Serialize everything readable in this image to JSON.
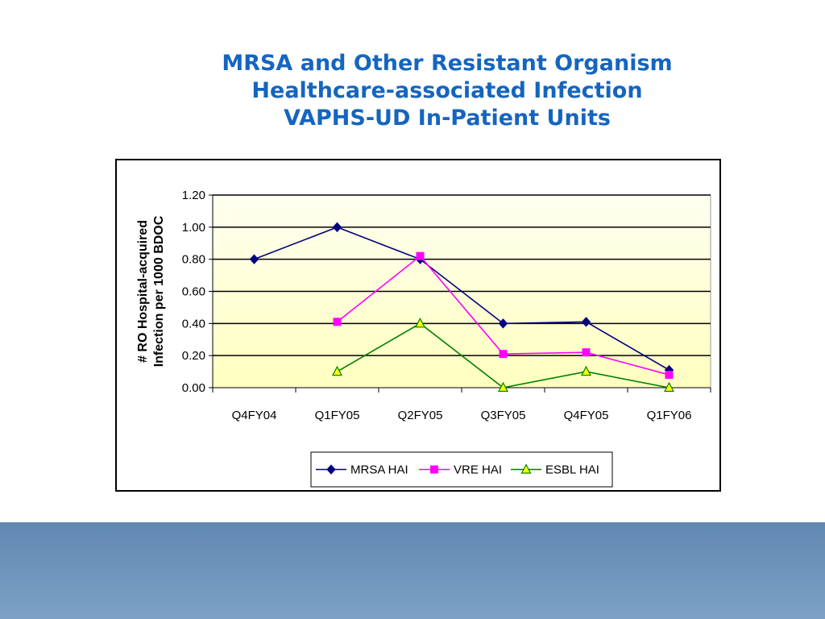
{
  "slide": {
    "title_lines": [
      "MRSA and Other Resistant Organism",
      "Healthcare-associated Infection",
      "VAPHS-UD In-Patient Units"
    ]
  },
  "colors": {
    "title": "#1565c0",
    "plot_bg_top": "#fffff0",
    "plot_bg_bottom": "#ffffc0",
    "footer": "#6f94bb"
  },
  "chart_data": {
    "type": "line",
    "categories": [
      "Q4FY04",
      "Q1FY05",
      "Q2FY05",
      "Q3FY05",
      "Q4FY05",
      "Q1FY06"
    ],
    "series": [
      {
        "name": "MRSA HAI",
        "color": "#000080",
        "marker": "diamond",
        "values": [
          0.8,
          1.0,
          0.8,
          0.4,
          0.41,
          0.11
        ]
      },
      {
        "name": "VRE HAI",
        "color": "#ff00ff",
        "marker": "square",
        "values": [
          null,
          0.41,
          0.82,
          0.21,
          0.22,
          0.08
        ]
      },
      {
        "name": "ESBL HAI",
        "color": "#008000",
        "marker": "triangle",
        "marker_fill": "#ffff00",
        "values": [
          null,
          0.1,
          0.4,
          0.0,
          0.1,
          0.0
        ]
      }
    ],
    "ylabel_lines": [
      "# RO Hospital-acquired",
      "Infection per 1000 BDOC"
    ],
    "ylim": [
      0,
      1.2
    ],
    "yticks": [
      "0.00",
      "0.20",
      "0.40",
      "0.60",
      "0.80",
      "1.00",
      "1.20"
    ],
    "grid": true,
    "legend_position": "bottom"
  }
}
